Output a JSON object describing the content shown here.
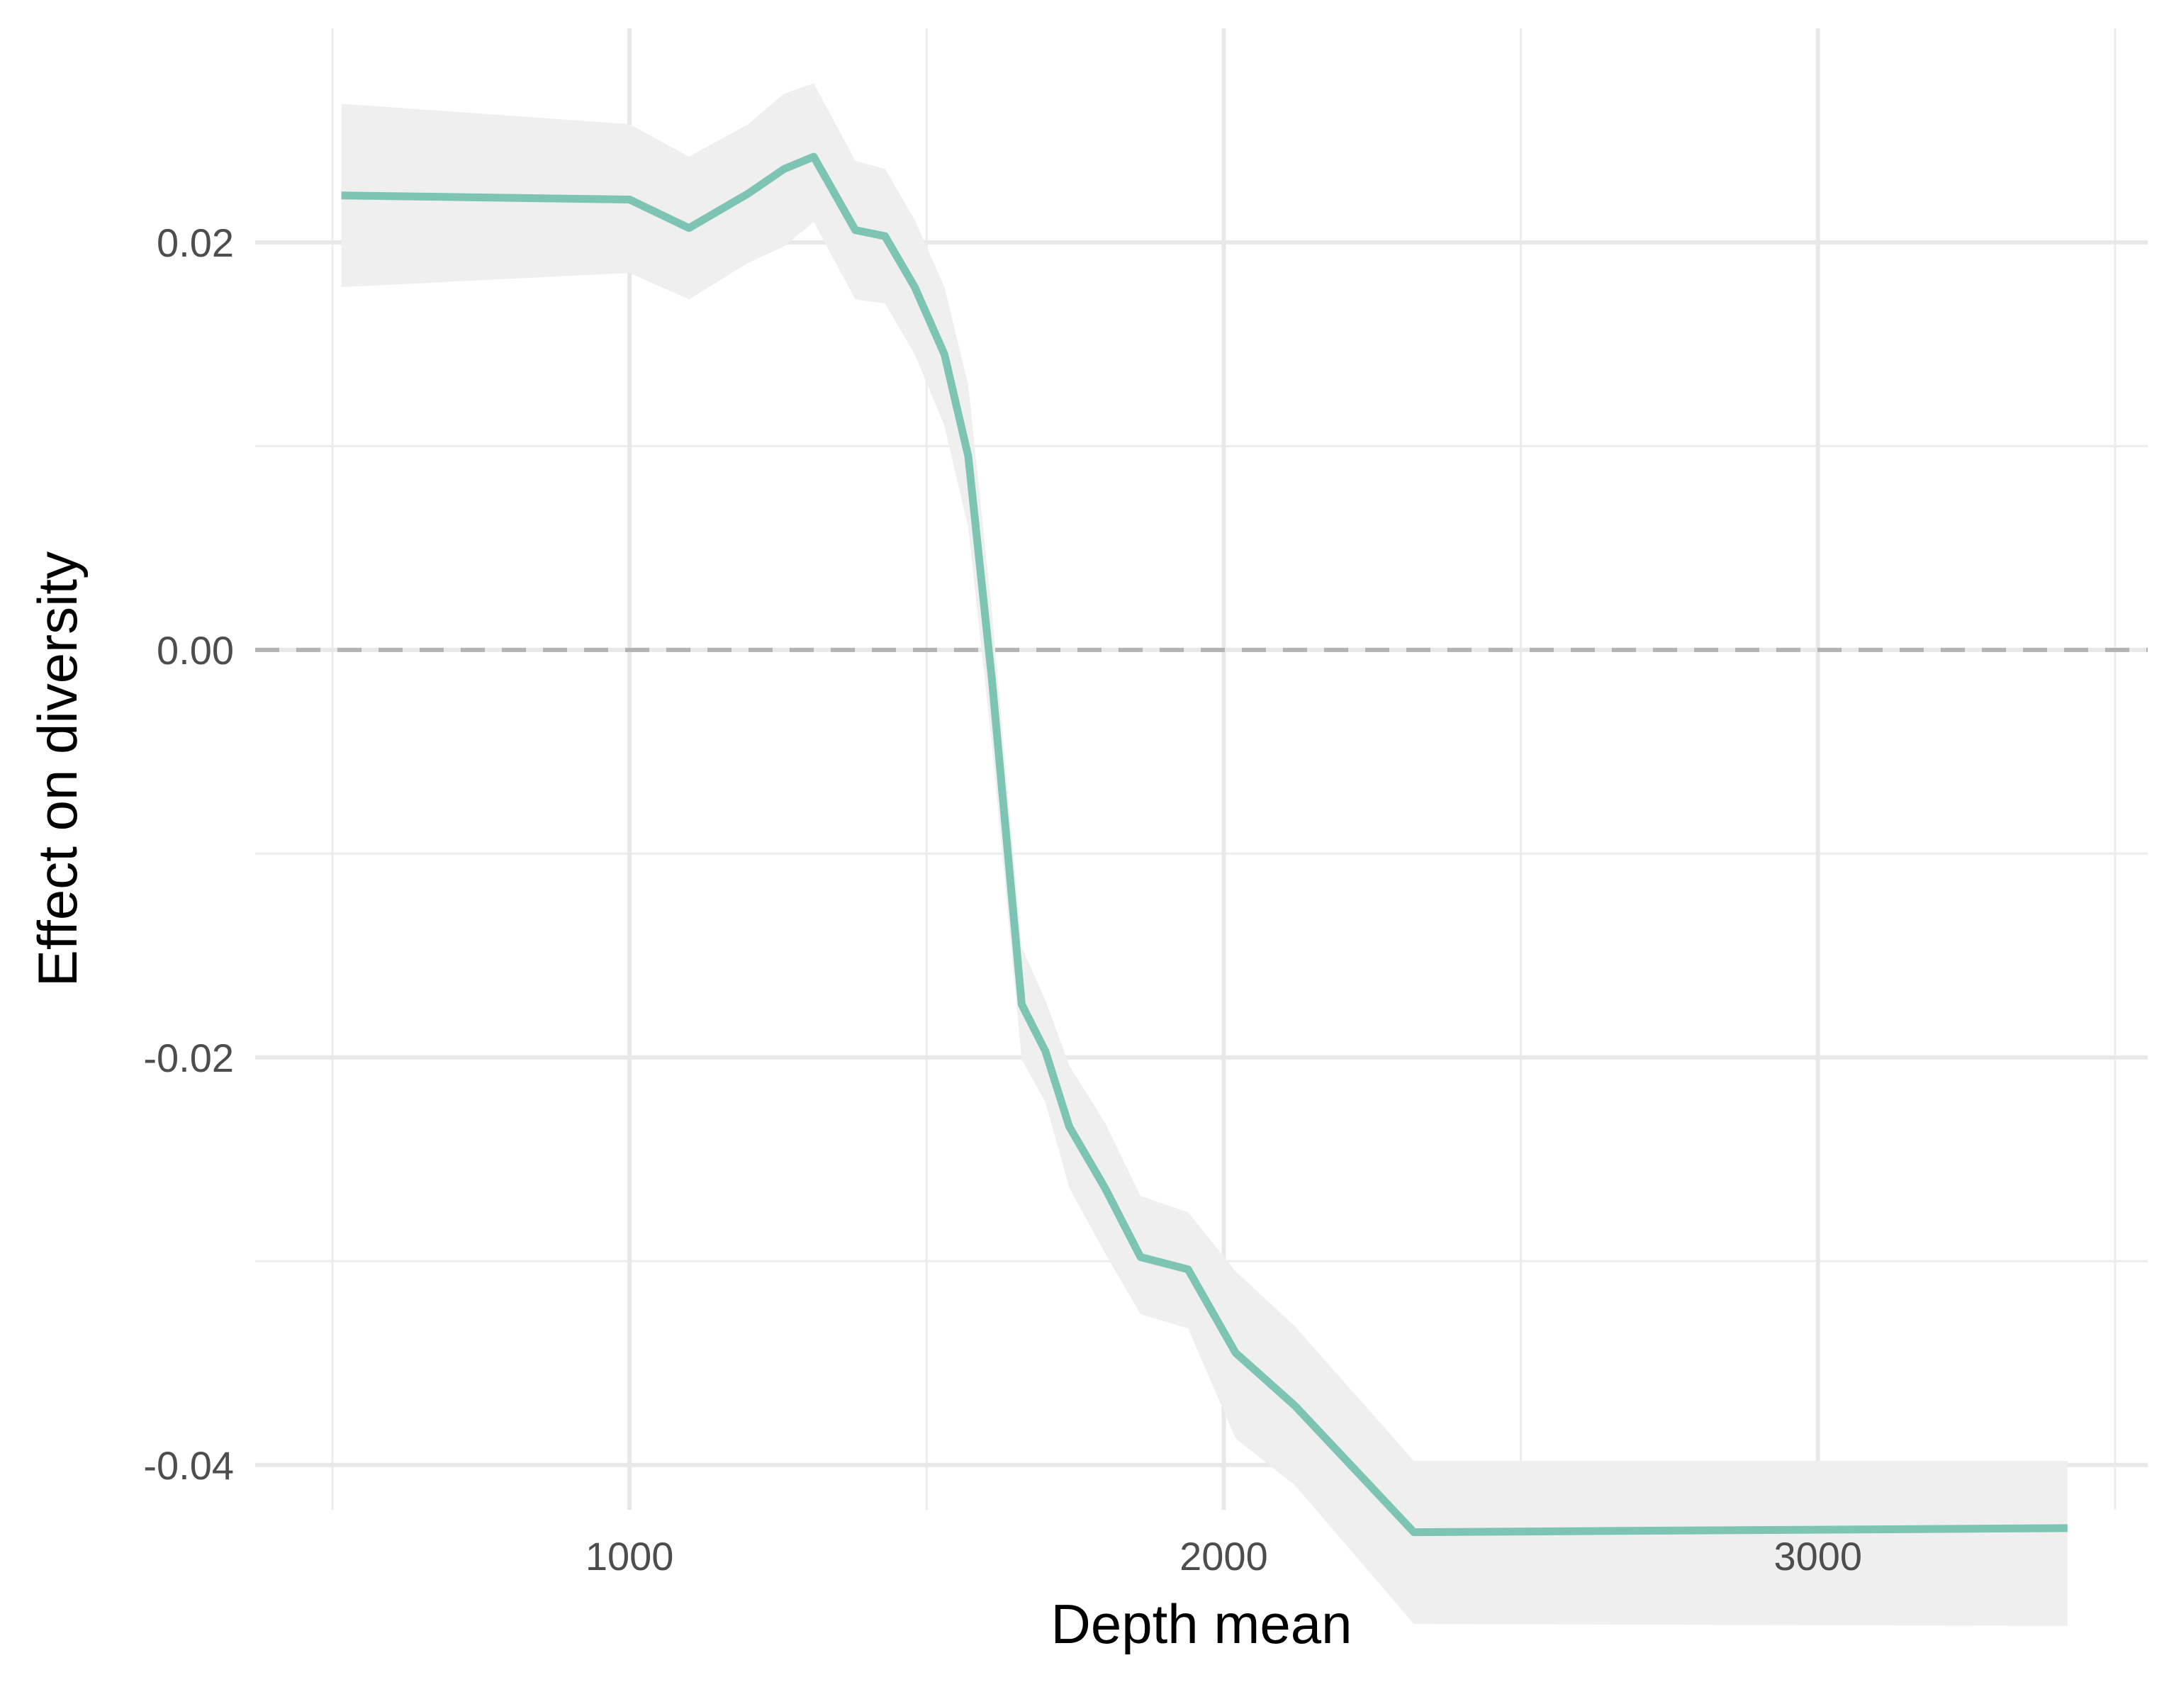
{
  "chart_data": {
    "type": "line",
    "xlabel": "Depth mean",
    "ylabel": "Effect on diversity",
    "xlim": [
      370,
      3555
    ],
    "ylim": [
      -0.0422,
      0.0305
    ],
    "xticks": [
      1000,
      2000,
      3000
    ],
    "xtick_labels": [
      "1000",
      "2000",
      "3000"
    ],
    "xminor": [
      500,
      1500,
      2500,
      3500
    ],
    "yticks": [
      0.02,
      0.0,
      -0.02,
      -0.04
    ],
    "ytick_labels": [
      "0.02",
      "0.00",
      "-0.02",
      "-0.04"
    ],
    "yminor": [
      0.01,
      -0.01,
      -0.03
    ],
    "grid": true,
    "reference_line": {
      "y": 0.0,
      "style": "dashed",
      "color": "#b3b3b3"
    },
    "series": [
      {
        "color": "#7dc4b4",
        "band_color": "#efefef",
        "x": [
          515,
          1000,
          1100,
          1200,
          1260,
          1310,
          1380,
          1430,
          1480,
          1530,
          1570,
          1610,
          1660,
          1700,
          1740,
          1800,
          1860,
          1940,
          2020,
          2120,
          2320,
          3420
        ],
        "y": [
          0.0223,
          0.0221,
          0.0207,
          0.0224,
          0.0236,
          0.0242,
          0.0206,
          0.0203,
          0.0178,
          0.0145,
          0.0095,
          -0.0015,
          -0.0174,
          -0.0197,
          -0.0234,
          -0.0264,
          -0.0298,
          -0.0304,
          -0.0345,
          -0.0371,
          -0.0433,
          -0.0431
        ],
        "lower": [
          0.0178,
          0.0185,
          0.0172,
          0.019,
          0.0198,
          0.021,
          0.0172,
          0.017,
          0.0145,
          0.011,
          0.006,
          -0.0047,
          -0.0201,
          -0.0222,
          -0.0264,
          -0.0296,
          -0.0326,
          -0.0333,
          -0.0387,
          -0.041,
          -0.0478,
          -0.0479
        ],
        "upper": [
          0.0268,
          0.0258,
          0.0242,
          0.0258,
          0.0273,
          0.0278,
          0.024,
          0.0236,
          0.0211,
          0.0178,
          0.013,
          0.0018,
          -0.0146,
          -0.0172,
          -0.0204,
          -0.0232,
          -0.0268,
          -0.0276,
          -0.0305,
          -0.0332,
          -0.0398,
          -0.0398
        ]
      }
    ]
  }
}
